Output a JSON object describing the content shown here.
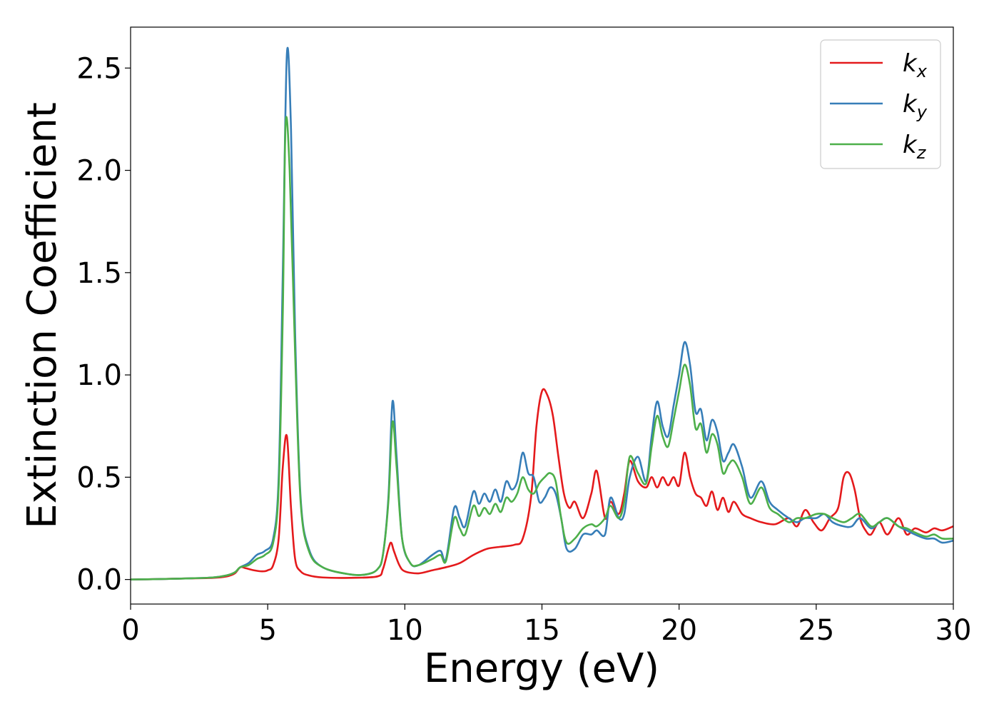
{
  "chart_data": {
    "type": "line",
    "xlabel": "Energy (eV)",
    "ylabel": "Extinction Coefficient",
    "xlim": [
      0,
      30
    ],
    "ylim": [
      -0.12,
      2.7
    ],
    "xticks": [
      0,
      5,
      10,
      15,
      20,
      25,
      30
    ],
    "yticks": [
      0.0,
      0.5,
      1.0,
      1.5,
      2.0,
      2.5
    ],
    "xtick_labels": [
      "0",
      "5",
      "10",
      "15",
      "20",
      "25",
      "30"
    ],
    "ytick_labels": [
      "0.0",
      "0.5",
      "1.0",
      "1.5",
      "2.0",
      "2.5"
    ],
    "legend_position": "top-right",
    "grid": false,
    "series": [
      {
        "name": "k_x",
        "label_base": "k",
        "label_sub": "x",
        "color": "#e41a1c",
        "x": [
          0,
          1,
          2,
          3,
          3.5,
          3.8,
          4.0,
          4.2,
          4.5,
          4.8,
          5.0,
          5.2,
          5.4,
          5.55,
          5.7,
          5.85,
          6.0,
          6.2,
          6.5,
          7,
          8,
          9,
          9.2,
          9.4,
          9.5,
          9.6,
          9.8,
          10,
          10.5,
          11,
          11.5,
          12,
          12.5,
          13,
          13.5,
          14,
          14.3,
          14.6,
          14.8,
          15.0,
          15.2,
          15.4,
          15.6,
          15.8,
          16.0,
          16.2,
          16.5,
          16.8,
          17.0,
          17.3,
          17.5,
          17.8,
          18.0,
          18.2,
          18.5,
          18.8,
          19.0,
          19.2,
          19.4,
          19.6,
          19.8,
          20.0,
          20.2,
          20.4,
          20.6,
          20.8,
          21.0,
          21.2,
          21.4,
          21.6,
          21.8,
          22.0,
          22.3,
          22.6,
          23.0,
          23.5,
          24.0,
          24.3,
          24.6,
          24.9,
          25.2,
          25.5,
          25.8,
          26.0,
          26.2,
          26.4,
          26.6,
          26.8,
          27.0,
          27.3,
          27.6,
          28.0,
          28.3,
          28.6,
          29.0,
          29.3,
          29.6,
          30.0
        ],
        "y": [
          0.0,
          0.002,
          0.005,
          0.008,
          0.015,
          0.03,
          0.06,
          0.055,
          0.045,
          0.04,
          0.045,
          0.07,
          0.2,
          0.55,
          0.7,
          0.35,
          0.1,
          0.04,
          0.02,
          0.01,
          0.008,
          0.015,
          0.05,
          0.15,
          0.18,
          0.14,
          0.07,
          0.04,
          0.03,
          0.045,
          0.06,
          0.08,
          0.12,
          0.15,
          0.16,
          0.17,
          0.2,
          0.4,
          0.75,
          0.92,
          0.9,
          0.8,
          0.6,
          0.42,
          0.35,
          0.38,
          0.3,
          0.42,
          0.53,
          0.3,
          0.38,
          0.32,
          0.42,
          0.58,
          0.48,
          0.45,
          0.5,
          0.45,
          0.5,
          0.46,
          0.5,
          0.46,
          0.62,
          0.5,
          0.42,
          0.4,
          0.36,
          0.43,
          0.34,
          0.4,
          0.33,
          0.38,
          0.32,
          0.3,
          0.28,
          0.27,
          0.3,
          0.26,
          0.34,
          0.28,
          0.24,
          0.3,
          0.35,
          0.5,
          0.52,
          0.44,
          0.3,
          0.24,
          0.22,
          0.28,
          0.22,
          0.3,
          0.22,
          0.25,
          0.23,
          0.25,
          0.24,
          0.26
        ]
      },
      {
        "name": "k_y",
        "label_base": "k",
        "label_sub": "y",
        "color": "#377eb8",
        "x": [
          0,
          1,
          2,
          3,
          3.5,
          3.8,
          4.0,
          4.3,
          4.6,
          4.9,
          5.2,
          5.4,
          5.55,
          5.7,
          5.85,
          6.0,
          6.2,
          6.5,
          7,
          8,
          8.6,
          9.0,
          9.2,
          9.4,
          9.55,
          9.7,
          9.9,
          10.2,
          10.5,
          11,
          11.3,
          11.5,
          11.8,
          12.0,
          12.2,
          12.5,
          12.7,
          12.9,
          13.1,
          13.3,
          13.5,
          13.7,
          13.9,
          14.1,
          14.3,
          14.5,
          14.7,
          14.9,
          15.1,
          15.3,
          15.5,
          15.7,
          15.9,
          16.2,
          16.5,
          16.8,
          17.0,
          17.3,
          17.5,
          17.8,
          18.0,
          18.2,
          18.5,
          18.8,
          19.0,
          19.2,
          19.4,
          19.6,
          19.8,
          20.0,
          20.2,
          20.4,
          20.6,
          20.8,
          21.0,
          21.2,
          21.4,
          21.6,
          21.8,
          22.0,
          22.3,
          22.6,
          23.0,
          23.3,
          23.6,
          24.0,
          24.3,
          24.6,
          25.0,
          25.3,
          25.6,
          26.0,
          26.3,
          26.6,
          27.0,
          27.3,
          27.6,
          28.0,
          28.3,
          28.6,
          29.0,
          29.3,
          29.6,
          30.0
        ],
        "y": [
          0.0,
          0.002,
          0.005,
          0.01,
          0.02,
          0.035,
          0.06,
          0.08,
          0.12,
          0.14,
          0.2,
          0.5,
          1.5,
          2.57,
          2.2,
          1.2,
          0.4,
          0.15,
          0.06,
          0.025,
          0.025,
          0.05,
          0.12,
          0.4,
          0.87,
          0.6,
          0.2,
          0.08,
          0.07,
          0.12,
          0.14,
          0.1,
          0.35,
          0.3,
          0.26,
          0.43,
          0.37,
          0.42,
          0.38,
          0.44,
          0.38,
          0.48,
          0.44,
          0.48,
          0.62,
          0.52,
          0.5,
          0.38,
          0.4,
          0.45,
          0.42,
          0.3,
          0.15,
          0.15,
          0.22,
          0.22,
          0.24,
          0.22,
          0.4,
          0.3,
          0.32,
          0.5,
          0.6,
          0.48,
          0.7,
          0.87,
          0.75,
          0.7,
          0.85,
          1.0,
          1.16,
          1.05,
          0.82,
          0.83,
          0.68,
          0.78,
          0.72,
          0.58,
          0.62,
          0.66,
          0.55,
          0.4,
          0.48,
          0.38,
          0.34,
          0.3,
          0.28,
          0.3,
          0.3,
          0.32,
          0.28,
          0.26,
          0.26,
          0.3,
          0.25,
          0.28,
          0.3,
          0.26,
          0.24,
          0.22,
          0.2,
          0.2,
          0.18,
          0.19
        ]
      },
      {
        "name": "k_z",
        "label_base": "k",
        "label_sub": "z",
        "color": "#4daf4a",
        "x": [
          0,
          1,
          2,
          3,
          3.5,
          3.8,
          4.0,
          4.3,
          4.6,
          4.9,
          5.2,
          5.4,
          5.55,
          5.65,
          5.8,
          6.0,
          6.2,
          6.5,
          7,
          8,
          8.6,
          9.0,
          9.2,
          9.4,
          9.55,
          9.7,
          9.9,
          10.2,
          10.5,
          11,
          11.3,
          11.5,
          11.8,
          12.0,
          12.2,
          12.5,
          12.7,
          12.9,
          13.1,
          13.3,
          13.5,
          13.7,
          13.9,
          14.1,
          14.3,
          14.5,
          14.7,
          14.9,
          15.1,
          15.3,
          15.5,
          15.7,
          15.9,
          16.2,
          16.5,
          16.8,
          17.0,
          17.3,
          17.5,
          17.8,
          18.0,
          18.2,
          18.5,
          18.8,
          19.0,
          19.2,
          19.4,
          19.6,
          19.8,
          20.0,
          20.2,
          20.4,
          20.6,
          20.8,
          21.0,
          21.2,
          21.4,
          21.6,
          21.8,
          22.0,
          22.3,
          22.6,
          23.0,
          23.3,
          23.6,
          24.0,
          24.3,
          24.6,
          25.0,
          25.3,
          25.6,
          26.0,
          26.3,
          26.6,
          27.0,
          27.3,
          27.6,
          28.0,
          28.3,
          28.6,
          29.0,
          29.3,
          29.6,
          30.0
        ],
        "y": [
          0.0,
          0.002,
          0.005,
          0.01,
          0.02,
          0.035,
          0.06,
          0.07,
          0.1,
          0.12,
          0.18,
          0.45,
          1.3,
          2.22,
          2.0,
          1.1,
          0.38,
          0.14,
          0.06,
          0.025,
          0.025,
          0.05,
          0.12,
          0.38,
          0.77,
          0.55,
          0.2,
          0.08,
          0.07,
          0.1,
          0.12,
          0.09,
          0.3,
          0.25,
          0.22,
          0.36,
          0.31,
          0.35,
          0.32,
          0.37,
          0.33,
          0.4,
          0.38,
          0.42,
          0.5,
          0.44,
          0.42,
          0.47,
          0.5,
          0.52,
          0.48,
          0.3,
          0.18,
          0.2,
          0.25,
          0.27,
          0.26,
          0.3,
          0.36,
          0.3,
          0.38,
          0.6,
          0.52,
          0.47,
          0.65,
          0.8,
          0.7,
          0.65,
          0.78,
          0.92,
          1.05,
          0.95,
          0.74,
          0.76,
          0.62,
          0.71,
          0.66,
          0.52,
          0.56,
          0.58,
          0.5,
          0.37,
          0.45,
          0.35,
          0.32,
          0.28,
          0.3,
          0.3,
          0.32,
          0.32,
          0.3,
          0.28,
          0.3,
          0.32,
          0.26,
          0.28,
          0.3,
          0.26,
          0.25,
          0.23,
          0.21,
          0.22,
          0.2,
          0.2
        ]
      }
    ]
  }
}
